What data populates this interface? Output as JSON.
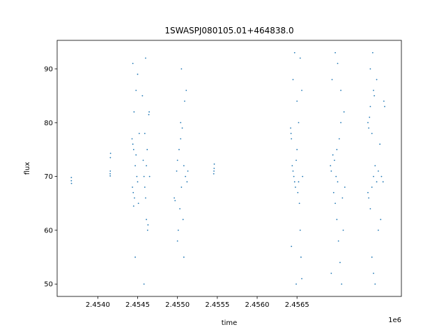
{
  "chart_data": {
    "type": "scatter",
    "title": "1SWASPJ080105.01+464838.0",
    "xlabel": "time",
    "ylabel": "flux",
    "x_offset_label": "1e6",
    "color": "#1f77b4",
    "xlim": [
      2453490,
      2457810
    ],
    "ylim": [
      47.7,
      95.3
    ],
    "xticks": [
      {
        "value": 2454000,
        "label": "2.4540"
      },
      {
        "value": 2454500,
        "label": "2.4545"
      },
      {
        "value": 2455000,
        "label": "2.4550"
      },
      {
        "value": 2455500,
        "label": "2.4555"
      },
      {
        "value": 2456000,
        "label": "2.4560"
      },
      {
        "value": 2456500,
        "label": "2.4565"
      }
    ],
    "yticks": [
      50,
      60,
      70,
      80,
      90
    ],
    "x": [
      2453668,
      2453668,
      2453670,
      2454155,
      2454157,
      2454158,
      2454160,
      2454156,
      2454430,
      2454440,
      2454450,
      2454435,
      2454445,
      2454460,
      2454470,
      2454480,
      2454490,
      2454500,
      2454510,
      2454450,
      2454440,
      2454500,
      2454470,
      2454520,
      2454480,
      2454455,
      2454570,
      2454580,
      2454590,
      2454600,
      2454610,
      2454620,
      2454640,
      2454645,
      2454630,
      2454625,
      2454600,
      2454580,
      2454650,
      2454610,
      2454590,
      2454560,
      2454960,
      2454970,
      2454990,
      2455000,
      2455020,
      2455040,
      2455060,
      2455080,
      2455100,
      2455120,
      2455130,
      2455050,
      2455030,
      2455070,
      2455010,
      2455090,
      2455110,
      2455000,
      2455050,
      2455080,
      2455040,
      2455455,
      2455460,
      2455462,
      2455458,
      2456420,
      2456425,
      2456430,
      2456440,
      2456450,
      2456460,
      2456470,
      2456480,
      2456490,
      2456500,
      2456510,
      2456520,
      2456530,
      2456540,
      2456550,
      2456560,
      2456450,
      2456470,
      2456500,
      2456520,
      2456540,
      2456560,
      2456430,
      2456490,
      2456570,
      2456920,
      2456930,
      2456950,
      2456970,
      2456990,
      2457010,
      2457030,
      2457050,
      2456960,
      2456980,
      2457000,
      2457020,
      2457040,
      2457060,
      2457080,
      2457100,
      2456940,
      2456980,
      2457010,
      2457050,
      2457090,
      2456930,
      2457000,
      2457070,
      2457390,
      2457400,
      2457410,
      2457420,
      2457440,
      2457460,
      2457470,
      2457390,
      2457400,
      2457420,
      2457440,
      2457460,
      2457480,
      2457500,
      2457520,
      2457540,
      2457560,
      2457580,
      2457590,
      2457600,
      2457420,
      2457450,
      2457500,
      2457440,
      2457480,
      2457520,
      2457550,
      2457460
    ],
    "values": [
      69.2,
      69.8,
      68.7,
      70.5,
      71,
      73.5,
      74.3,
      70.1,
      77,
      76,
      75,
      68,
      67,
      66,
      72,
      74,
      70,
      69,
      65,
      64.5,
      91,
      89,
      55,
      78,
      86,
      82,
      73,
      70,
      68,
      66,
      72,
      75,
      81.5,
      82,
      61,
      60,
      92,
      50,
      70,
      62,
      78,
      85,
      66,
      65.5,
      71,
      73,
      75,
      77,
      79,
      72,
      70,
      69,
      71,
      68,
      64,
      62,
      60,
      84,
      86,
      58,
      90,
      55,
      80,
      70.5,
      71.5,
      72.3,
      71,
      79,
      78,
      77,
      72,
      71,
      70,
      69,
      68,
      73,
      75,
      67,
      69,
      65,
      60,
      55,
      51,
      88,
      93,
      84,
      80,
      92,
      86,
      57,
      50,
      70,
      72,
      71,
      74,
      73,
      70,
      69,
      77,
      80,
      67,
      65,
      62,
      58,
      54,
      50,
      60,
      68,
      88,
      93,
      91,
      86,
      82,
      52,
      75,
      66,
      80,
      79,
      81,
      83,
      78,
      86,
      85,
      67,
      66,
      64,
      68,
      70,
      72,
      69,
      71,
      76,
      70,
      69,
      84,
      83,
      90,
      93,
      88,
      55,
      50,
      60,
      62,
      52
    ]
  }
}
